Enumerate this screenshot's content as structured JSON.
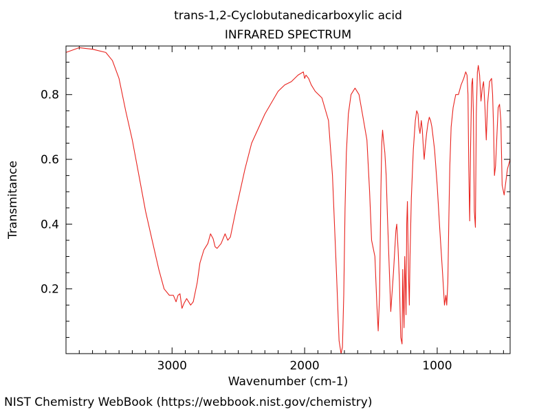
{
  "chart_data": {
    "type": "line",
    "title": "trans-1,2-Cyclobutanedicarboxylic acid",
    "subtitle": "INFRARED SPECTRUM",
    "xlabel": "Wavenumber (cm-1)",
    "ylabel": "Transmitance",
    "xlim": [
      3800,
      450
    ],
    "ylim": [
      0,
      0.95
    ],
    "x_reversed": true,
    "x_ticks": [
      3000,
      2000,
      1000
    ],
    "y_ticks": [
      0.2,
      0.4,
      0.6,
      0.8
    ],
    "grid": false,
    "legend": "none",
    "color": "#e8211c",
    "series": [
      {
        "x": [
          3800,
          3700,
          3600,
          3500,
          3450,
          3400,
          3350,
          3300,
          3250,
          3200,
          3150,
          3100,
          3060,
          3020,
          2990,
          2970,
          2955,
          2940,
          2925,
          2910,
          2890,
          2860,
          2840,
          2810,
          2790,
          2760,
          2730,
          2710,
          2690,
          2675,
          2660,
          2630,
          2600,
          2580,
          2560,
          2520,
          2450,
          2400,
          2300,
          2200,
          2150,
          2100,
          2050,
          2010,
          2000,
          1990,
          1970,
          1950,
          1920,
          1870,
          1820,
          1790,
          1760,
          1740,
          1725,
          1715,
          1705,
          1695,
          1685,
          1670,
          1650,
          1620,
          1590,
          1560,
          1530,
          1510,
          1495,
          1470,
          1455,
          1445,
          1435,
          1425,
          1418,
          1412,
          1405,
          1395,
          1385,
          1375,
          1365,
          1350,
          1330,
          1320,
          1312,
          1305,
          1295,
          1285,
          1275,
          1265,
          1260,
          1255,
          1250,
          1245,
          1240,
          1235,
          1230,
          1225,
          1220,
          1215,
          1210,
          1205,
          1195,
          1180,
          1165,
          1155,
          1145,
          1138,
          1130,
          1120,
          1112,
          1105,
          1098,
          1090,
          1080,
          1070,
          1060,
          1050,
          1040,
          1020,
          1000,
          980,
          960,
          945,
          935,
          928,
          920,
          912,
          905,
          895,
          880,
          860,
          840,
          820,
          800,
          785,
          775,
          768,
          762,
          755,
          748,
          740,
          733,
          727,
          720,
          712,
          705,
          697,
          690,
          680,
          670,
          660,
          650,
          640,
          630,
          620,
          605,
          590,
          582,
          575,
          568,
          560,
          550,
          540,
          530,
          520,
          510,
          495,
          470,
          450
        ],
        "y": [
          0.93,
          0.945,
          0.94,
          0.93,
          0.905,
          0.85,
          0.75,
          0.66,
          0.55,
          0.44,
          0.35,
          0.26,
          0.2,
          0.18,
          0.18,
          0.16,
          0.18,
          0.185,
          0.14,
          0.155,
          0.17,
          0.15,
          0.16,
          0.22,
          0.28,
          0.32,
          0.34,
          0.37,
          0.355,
          0.33,
          0.325,
          0.34,
          0.37,
          0.35,
          0.36,
          0.44,
          0.57,
          0.65,
          0.74,
          0.81,
          0.83,
          0.84,
          0.86,
          0.87,
          0.85,
          0.86,
          0.85,
          0.83,
          0.81,
          0.79,
          0.72,
          0.55,
          0.25,
          0.04,
          0.0,
          0.02,
          0.18,
          0.45,
          0.62,
          0.74,
          0.8,
          0.82,
          0.8,
          0.73,
          0.66,
          0.5,
          0.35,
          0.3,
          0.15,
          0.07,
          0.18,
          0.5,
          0.65,
          0.69,
          0.66,
          0.62,
          0.55,
          0.42,
          0.3,
          0.13,
          0.25,
          0.32,
          0.38,
          0.4,
          0.32,
          0.22,
          0.05,
          0.03,
          0.26,
          0.15,
          0.08,
          0.3,
          0.22,
          0.12,
          0.4,
          0.47,
          0.34,
          0.22,
          0.15,
          0.3,
          0.48,
          0.63,
          0.72,
          0.75,
          0.74,
          0.7,
          0.68,
          0.72,
          0.69,
          0.64,
          0.6,
          0.64,
          0.68,
          0.71,
          0.73,
          0.72,
          0.7,
          0.63,
          0.52,
          0.38,
          0.25,
          0.15,
          0.18,
          0.15,
          0.22,
          0.42,
          0.58,
          0.7,
          0.76,
          0.8,
          0.8,
          0.83,
          0.85,
          0.87,
          0.86,
          0.8,
          0.58,
          0.41,
          0.64,
          0.83,
          0.85,
          0.74,
          0.44,
          0.39,
          0.74,
          0.87,
          0.89,
          0.86,
          0.78,
          0.82,
          0.84,
          0.76,
          0.66,
          0.77,
          0.84,
          0.85,
          0.8,
          0.7,
          0.55,
          0.58,
          0.67,
          0.76,
          0.77,
          0.72,
          0.52,
          0.49,
          0.57,
          0.6
        ]
      }
    ]
  },
  "footer": "NIST Chemistry WebBook (https://webbook.nist.gov/chemistry)"
}
